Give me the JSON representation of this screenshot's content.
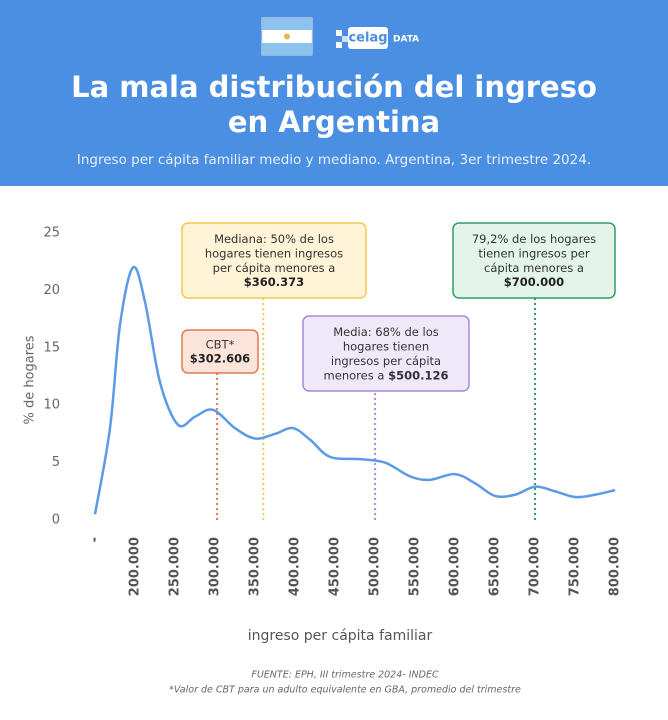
{
  "chart_data": {
    "type": "line",
    "logo_text": [
      "celag",
      "DATA"
    ],
    "title": [
      "La mala distribución del ingreso",
      "en Argentina"
    ],
    "subtitle": "Ingreso per cápita familiar medio y mediano. Argentina, 3er trimestre 2024.",
    "y_label": "% de hogares",
    "x_label": "ingreso per cápita familiar",
    "xlim": [
      150000,
      800000
    ],
    "xticks": [
      {
        "value": 150000,
        "label": "-"
      },
      {
        "value": 200000,
        "label": "200.000"
      },
      {
        "value": 250000,
        "label": "250.000"
      },
      {
        "value": 300000,
        "label": "300.000"
      },
      {
        "value": 350000,
        "label": "350.000"
      },
      {
        "value": 400000,
        "label": "400.000"
      },
      {
        "value": 450000,
        "label": "450.000"
      },
      {
        "value": 500000,
        "label": "500.000"
      },
      {
        "value": 550000,
        "label": "550.000"
      },
      {
        "value": 600000,
        "label": "600.000"
      },
      {
        "value": 650000,
        "label": "650.000"
      },
      {
        "value": 700000,
        "label": "700.000"
      },
      {
        "value": 750000,
        "label": "750.000"
      },
      {
        "value": 800000,
        "label": "800.000"
      }
    ],
    "ylim": [
      0,
      25
    ],
    "yticks": [
      0,
      5,
      10,
      15,
      20,
      25
    ],
    "series": [
      {
        "color": "#5b9be6",
        "x": [
          150000,
          168750,
          181250,
          197500,
          212500,
          231250,
          253750,
          275000,
          297500,
          325000,
          350000,
          375000,
          397500,
          418750,
          443750,
          481250,
          512500,
          543750,
          568750,
          600000,
          625000,
          650000,
          675000,
          700000,
          725000,
          750000,
          775000,
          800000
        ],
        "values": [
          0.5,
          8,
          17,
          22,
          19,
          12,
          8.3,
          9,
          9.6,
          8,
          7.1,
          7.5,
          8,
          7,
          5.5,
          5.3,
          5,
          3.8,
          3.5,
          4,
          3.2,
          2.1,
          2.2,
          2.9,
          2.5,
          2,
          2.2,
          2.6
        ]
      }
    ],
    "annotations": [
      {
        "x": 302606,
        "value_label": "$302.606",
        "lines": [
          "CBT*"
        ],
        "color": "#e07a4f",
        "fill": "#fde4da"
      },
      {
        "x": 360373,
        "value_label": "$360.373",
        "lines": [
          "Mediana: 50% de los",
          "hogares tienen ingresos",
          "per cápita menores a"
        ],
        "color": "#f2c94c",
        "fill": "#fff4d8"
      },
      {
        "x": 500126,
        "value_label": "$500.126",
        "lines": [
          "Media: 68% de los",
          "hogares tienen",
          "ingresos per cápita",
          "menores a"
        ],
        "value_inline": true,
        "color": "#a58ad8",
        "fill": "#eee8f8"
      },
      {
        "x": 700000,
        "value_label": "$700.000",
        "lines": [
          "79,2% de los hogares",
          "tienen ingresos per",
          "cápita menores a"
        ],
        "color": "#2e9e63",
        "fill": "#e3f4eb"
      }
    ],
    "source": "FUENTE: EPH, III trimestre 2024- INDEC",
    "footnote": "*Valor de CBT para un adulto equivalente en GBA, promedio del trimestre"
  }
}
